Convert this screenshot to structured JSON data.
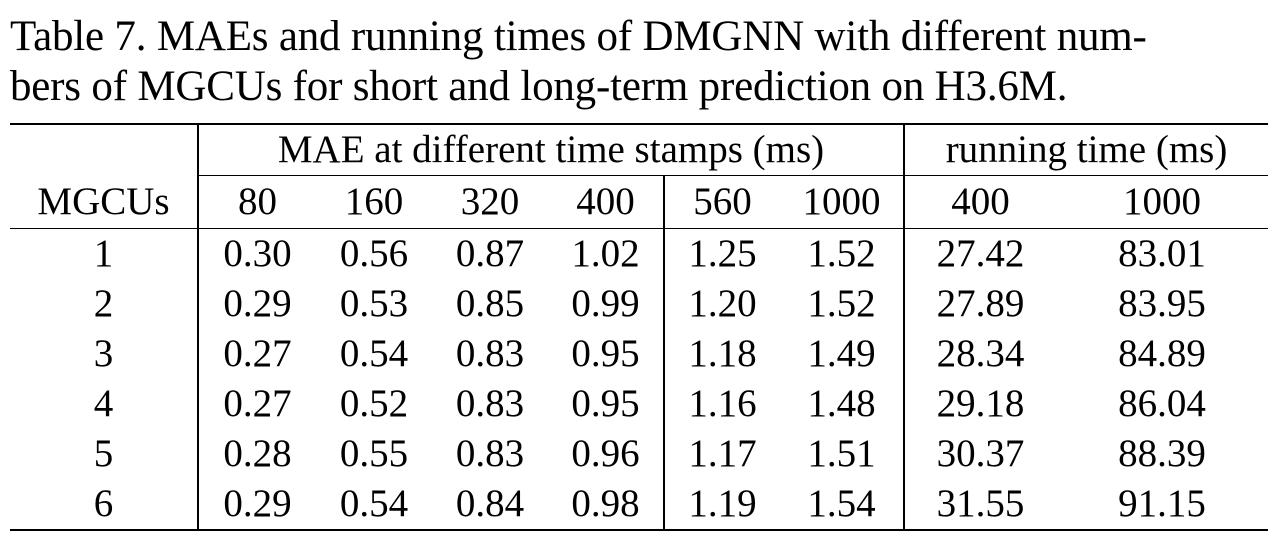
{
  "caption": "Table 7. MAEs and running times of DMGNN with different num-\nbers of MGCUs for short and long-term prediction on H3.6M.",
  "table": {
    "group_headers": {
      "mae": "MAE at different time stamps (ms)",
      "runtime": "running time (ms)"
    },
    "columns": [
      "MGCUs",
      "80",
      "160",
      "320",
      "400",
      "560",
      "1000",
      "400",
      "1000"
    ],
    "rows": [
      {
        "mgcus": "1",
        "cells": [
          "0.30",
          "0.56",
          "0.87",
          "1.02",
          "1.25",
          "1.52",
          "27.42",
          "83.01"
        ],
        "bold": [
          false,
          false,
          false,
          false,
          false,
          false,
          false,
          false
        ]
      },
      {
        "mgcus": "2",
        "cells": [
          "0.29",
          "0.53",
          "0.85",
          "0.99",
          "1.20",
          "1.52",
          "27.89",
          "83.95"
        ],
        "bold": [
          false,
          false,
          false,
          false,
          false,
          false,
          false,
          false
        ]
      },
      {
        "mgcus": "3",
        "cells": [
          "0.27",
          "0.54",
          "0.83",
          "0.95",
          "1.18",
          "1.49",
          "28.34",
          "84.89"
        ],
        "bold": [
          true,
          false,
          true,
          true,
          false,
          false,
          false,
          false
        ]
      },
      {
        "mgcus": "4",
        "cells": [
          "0.27",
          "0.52",
          "0.83",
          "0.95",
          "1.16",
          "1.48",
          "29.18",
          "86.04"
        ],
        "bold": [
          true,
          true,
          true,
          true,
          true,
          true,
          false,
          false
        ]
      },
      {
        "mgcus": "5",
        "cells": [
          "0.28",
          "0.55",
          "0.83",
          "0.96",
          "1.17",
          "1.51",
          "30.37",
          "88.39"
        ],
        "bold": [
          false,
          false,
          true,
          false,
          false,
          false,
          false,
          false
        ]
      },
      {
        "mgcus": "6",
        "cells": [
          "0.29",
          "0.54",
          "0.84",
          "0.98",
          "1.19",
          "1.54",
          "31.55",
          "91.15"
        ],
        "bold": [
          false,
          false,
          false,
          false,
          false,
          false,
          false,
          false
        ]
      }
    ]
  }
}
